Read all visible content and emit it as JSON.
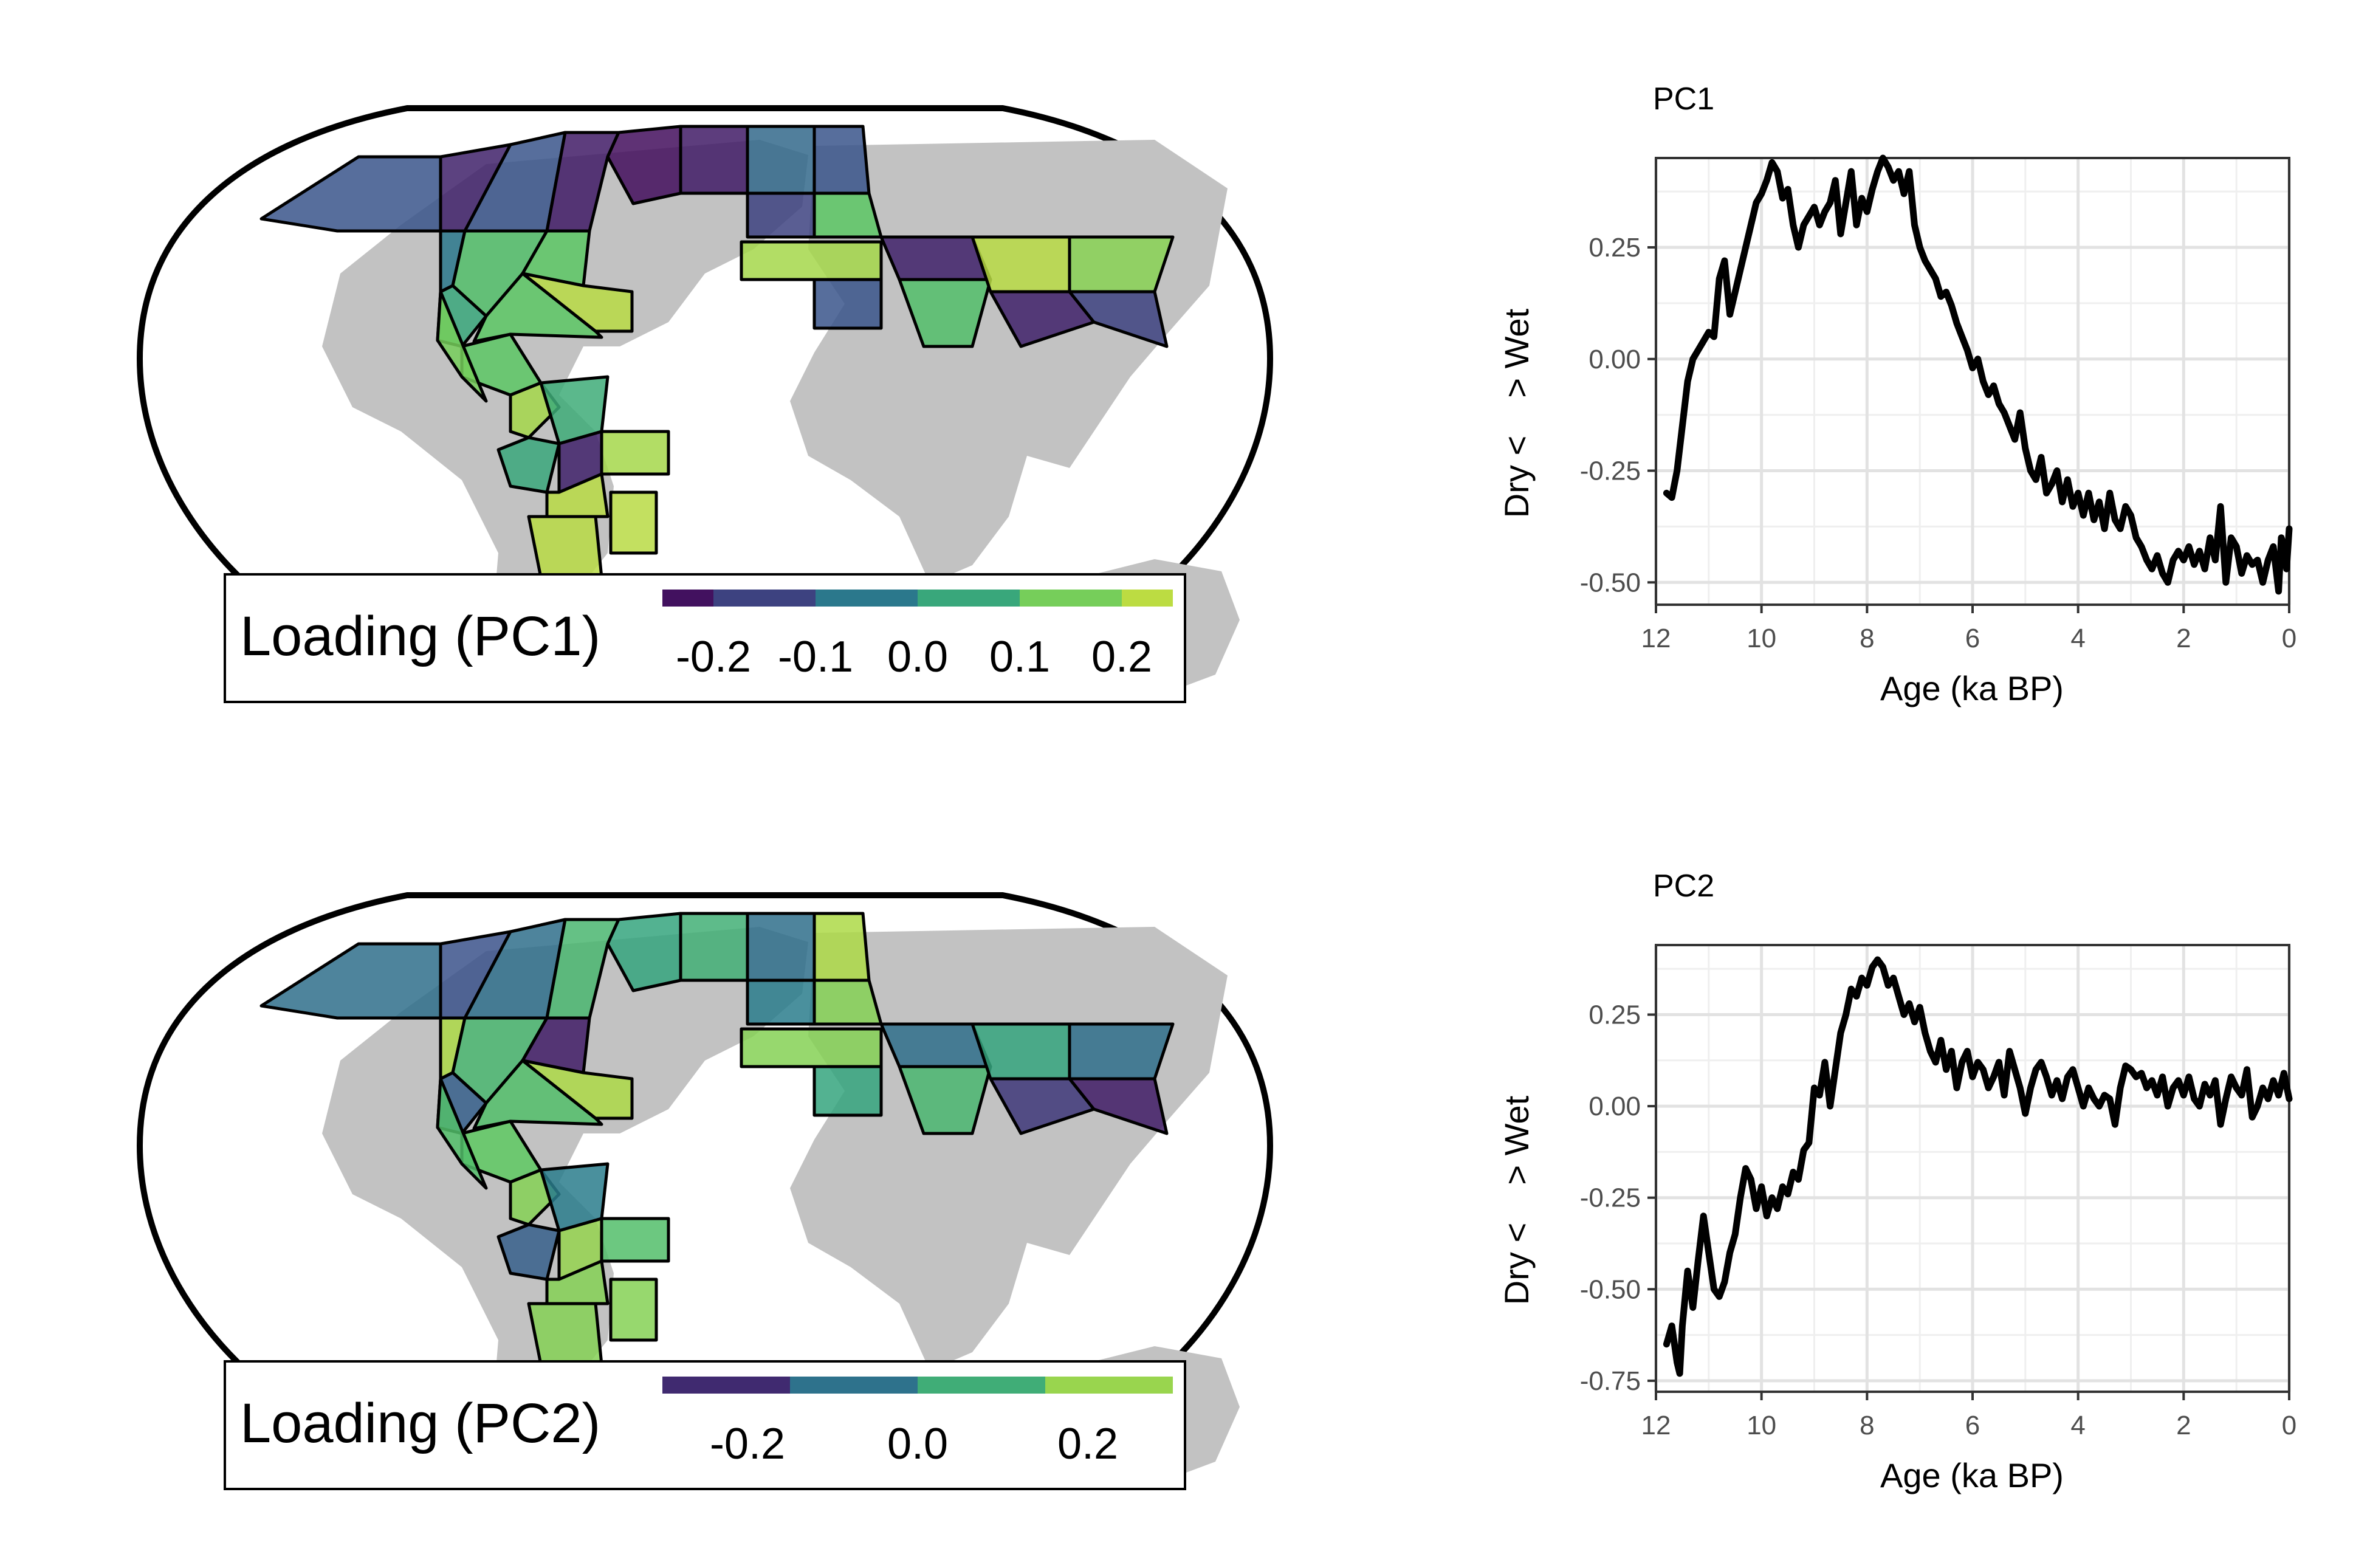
{
  "colors": {
    "viridis": [
      "#440154",
      "#3b528b",
      "#21918c",
      "#5ec962",
      "#d4e13a"
    ],
    "land": "#c2c2c2",
    "grid_major": "#e2e2e2",
    "grid_minor": "#efefef",
    "line": "#000000"
  },
  "maps": [
    {
      "legend_title": "Loading (PC1)",
      "legend_ticks": [
        "-0.2",
        "-0.1",
        "0.0",
        "0.1",
        "0.2"
      ],
      "legend_bins": [
        -0.25,
        -0.2,
        -0.1,
        0.0,
        0.1,
        0.2,
        0.25
      ],
      "legend_tick_values": [
        -0.2,
        -0.1,
        0.0,
        0.1,
        0.2
      ],
      "region_loadings": [
        -0.12,
        -0.2,
        -0.12,
        -0.21,
        -0.23,
        -0.21,
        -0.05,
        0.1,
        0.12,
        0.05,
        0.12,
        0.22,
        0.12,
        0.15,
        0.2,
        0.06,
        0.2,
        0.05,
        -0.2,
        0.22,
        0.22,
        0.22,
        0.04,
        -0.08,
        -0.12,
        -0.15,
        0.12,
        0.2,
        -0.12,
        -0.2,
        0.1,
        0.22,
        0.17,
        -0.2,
        -0.15
      ]
    },
    {
      "legend_title": "Loading (PC2)",
      "legend_ticks": [
        "-0.2",
        "0.0",
        "0.2"
      ],
      "legend_bins": [
        -0.3,
        -0.15,
        0.0,
        0.15,
        0.3
      ],
      "legend_tick_values": [
        -0.2,
        0.0,
        0.2
      ],
      "region_loadings": [
        -0.08,
        -0.15,
        -0.08,
        0.1,
        0.05,
        0.08,
        0.25,
        0.1,
        -0.25,
        -0.12,
        0.12,
        0.25,
        0.15,
        0.12,
        0.2,
        -0.05,
        0.12,
        -0.12,
        0.22,
        0.2,
        0.2,
        0.2,
        0.15,
        -0.08,
        0.25,
        -0.05,
        0.2,
        0.2,
        0.05,
        -0.08,
        0.1,
        0.05,
        -0.08,
        -0.2,
        -0.25
      ]
    }
  ],
  "chart_data": [
    {
      "type": "line",
      "title": "PC1",
      "xlabel": "Age (ka BP)",
      "ylabel": "Dry <    > Wet",
      "xlim": [
        12,
        0
      ],
      "ylim": [
        -0.55,
        0.45
      ],
      "x_ticks": [
        12,
        10,
        8,
        6,
        4,
        2,
        0
      ],
      "y_ticks": [
        0.25,
        0.0,
        -0.25,
        -0.5
      ],
      "x_tick_labels": [
        "12",
        "10",
        "8",
        "6",
        "4",
        "2",
        "0"
      ],
      "y_tick_labels": [
        "0.25",
        "0.00",
        "-0.25",
        "-0.50"
      ],
      "grid": true,
      "x": [
        11.8,
        11.7,
        11.6,
        11.5,
        11.4,
        11.3,
        11.2,
        11.1,
        11.0,
        10.9,
        10.8,
        10.7,
        10.6,
        10.5,
        10.4,
        10.3,
        10.2,
        10.1,
        10.0,
        9.9,
        9.8,
        9.7,
        9.6,
        9.5,
        9.4,
        9.3,
        9.2,
        9.1,
        9.0,
        8.9,
        8.8,
        8.7,
        8.6,
        8.5,
        8.4,
        8.3,
        8.2,
        8.1,
        8.0,
        7.9,
        7.8,
        7.7,
        7.6,
        7.5,
        7.4,
        7.3,
        7.2,
        7.1,
        7.0,
        6.9,
        6.8,
        6.7,
        6.6,
        6.5,
        6.4,
        6.3,
        6.2,
        6.1,
        6.0,
        5.9,
        5.8,
        5.7,
        5.6,
        5.5,
        5.4,
        5.3,
        5.2,
        5.1,
        5.0,
        4.9,
        4.8,
        4.7,
        4.6,
        4.5,
        4.4,
        4.3,
        4.2,
        4.1,
        4.0,
        3.9,
        3.8,
        3.7,
        3.6,
        3.5,
        3.4,
        3.3,
        3.2,
        3.1,
        3.0,
        2.9,
        2.8,
        2.7,
        2.6,
        2.5,
        2.4,
        2.3,
        2.2,
        2.1,
        2.0,
        1.9,
        1.8,
        1.7,
        1.6,
        1.5,
        1.4,
        1.3,
        1.2,
        1.1,
        1.0,
        0.9,
        0.8,
        0.7,
        0.6,
        0.5,
        0.4,
        0.3,
        0.25,
        0.2,
        0.15,
        0.1,
        0.05,
        0.0
      ],
      "y": [
        -0.3,
        -0.31,
        -0.25,
        -0.15,
        -0.05,
        0.0,
        0.02,
        0.04,
        0.06,
        0.05,
        0.18,
        0.22,
        0.1,
        0.15,
        0.2,
        0.25,
        0.3,
        0.35,
        0.37,
        0.4,
        0.44,
        0.42,
        0.36,
        0.38,
        0.3,
        0.25,
        0.3,
        0.32,
        0.34,
        0.3,
        0.33,
        0.35,
        0.4,
        0.28,
        0.35,
        0.42,
        0.3,
        0.36,
        0.33,
        0.38,
        0.42,
        0.45,
        0.43,
        0.4,
        0.42,
        0.37,
        0.42,
        0.3,
        0.25,
        0.22,
        0.2,
        0.18,
        0.14,
        0.15,
        0.12,
        0.08,
        0.05,
        0.02,
        -0.02,
        0.0,
        -0.05,
        -0.08,
        -0.06,
        -0.1,
        -0.12,
        -0.15,
        -0.18,
        -0.12,
        -0.2,
        -0.25,
        -0.27,
        -0.22,
        -0.3,
        -0.28,
        -0.25,
        -0.32,
        -0.27,
        -0.33,
        -0.3,
        -0.35,
        -0.3,
        -0.36,
        -0.32,
        -0.38,
        -0.3,
        -0.36,
        -0.38,
        -0.33,
        -0.35,
        -0.4,
        -0.42,
        -0.45,
        -0.47,
        -0.44,
        -0.48,
        -0.5,
        -0.45,
        -0.43,
        -0.45,
        -0.42,
        -0.46,
        -0.43,
        -0.47,
        -0.4,
        -0.45,
        -0.33,
        -0.5,
        -0.4,
        -0.42,
        -0.48,
        -0.44,
        -0.46,
        -0.45,
        -0.5,
        -0.45,
        -0.42,
        -0.47,
        -0.52,
        -0.4,
        -0.42,
        -0.47,
        -0.38
      ]
    },
    {
      "type": "line",
      "title": "PC2",
      "xlabel": "Age (ka BP)",
      "ylabel": "Dry <    > Wet",
      "xlim": [
        12,
        0
      ],
      "ylim": [
        -0.78,
        0.44
      ],
      "x_ticks": [
        12,
        10,
        8,
        6,
        4,
        2,
        0
      ],
      "y_ticks": [
        0.25,
        0.0,
        -0.25,
        -0.5,
        -0.75
      ],
      "x_tick_labels": [
        "12",
        "10",
        "8",
        "6",
        "4",
        "2",
        "0"
      ],
      "y_tick_labels": [
        "0.25",
        "0.00",
        "-0.25",
        "-0.50",
        "-0.75"
      ],
      "grid": true,
      "x": [
        11.8,
        11.7,
        11.6,
        11.55,
        11.5,
        11.4,
        11.3,
        11.2,
        11.1,
        11.0,
        10.9,
        10.8,
        10.7,
        10.6,
        10.5,
        10.4,
        10.3,
        10.2,
        10.1,
        10.0,
        9.9,
        9.8,
        9.7,
        9.6,
        9.5,
        9.4,
        9.3,
        9.2,
        9.1,
        9.0,
        8.9,
        8.8,
        8.7,
        8.6,
        8.5,
        8.4,
        8.3,
        8.2,
        8.1,
        8.0,
        7.9,
        7.8,
        7.7,
        7.6,
        7.5,
        7.4,
        7.3,
        7.2,
        7.1,
        7.0,
        6.9,
        6.8,
        6.7,
        6.6,
        6.5,
        6.4,
        6.3,
        6.2,
        6.1,
        6.0,
        5.9,
        5.8,
        5.7,
        5.6,
        5.5,
        5.4,
        5.3,
        5.2,
        5.1,
        5.0,
        4.9,
        4.8,
        4.7,
        4.6,
        4.5,
        4.4,
        4.3,
        4.2,
        4.1,
        4.0,
        3.9,
        3.8,
        3.7,
        3.6,
        3.5,
        3.4,
        3.3,
        3.2,
        3.1,
        3.0,
        2.9,
        2.8,
        2.7,
        2.6,
        2.5,
        2.4,
        2.3,
        2.2,
        2.1,
        2.0,
        1.9,
        1.8,
        1.7,
        1.6,
        1.5,
        1.4,
        1.3,
        1.2,
        1.1,
        1.0,
        0.9,
        0.8,
        0.7,
        0.6,
        0.5,
        0.4,
        0.3,
        0.2,
        0.1,
        0.0
      ],
      "y": [
        -0.65,
        -0.6,
        -0.7,
        -0.73,
        -0.6,
        -0.45,
        -0.55,
        -0.42,
        -0.3,
        -0.4,
        -0.5,
        -0.52,
        -0.48,
        -0.4,
        -0.35,
        -0.25,
        -0.17,
        -0.2,
        -0.28,
        -0.22,
        -0.3,
        -0.25,
        -0.28,
        -0.22,
        -0.24,
        -0.18,
        -0.2,
        -0.12,
        -0.1,
        0.05,
        0.03,
        0.12,
        0.0,
        0.1,
        0.2,
        0.25,
        0.32,
        0.3,
        0.35,
        0.33,
        0.38,
        0.4,
        0.38,
        0.33,
        0.35,
        0.3,
        0.25,
        0.28,
        0.23,
        0.27,
        0.2,
        0.15,
        0.12,
        0.18,
        0.1,
        0.15,
        0.05,
        0.12,
        0.15,
        0.08,
        0.12,
        0.1,
        0.05,
        0.08,
        0.12,
        0.03,
        0.15,
        0.1,
        0.05,
        -0.02,
        0.05,
        0.1,
        0.12,
        0.08,
        0.03,
        0.07,
        0.02,
        0.08,
        0.1,
        0.05,
        0.0,
        0.05,
        0.02,
        0.0,
        0.03,
        0.02,
        -0.05,
        0.05,
        0.11,
        0.1,
        0.08,
        0.09,
        0.05,
        0.07,
        0.03,
        0.08,
        0.0,
        0.05,
        0.07,
        0.03,
        0.08,
        0.02,
        0.0,
        0.06,
        0.03,
        0.07,
        -0.05,
        0.02,
        0.08,
        0.05,
        0.03,
        0.1,
        -0.03,
        0.0,
        0.05,
        0.02,
        0.07,
        0.03,
        0.09,
        0.02
      ]
    }
  ]
}
